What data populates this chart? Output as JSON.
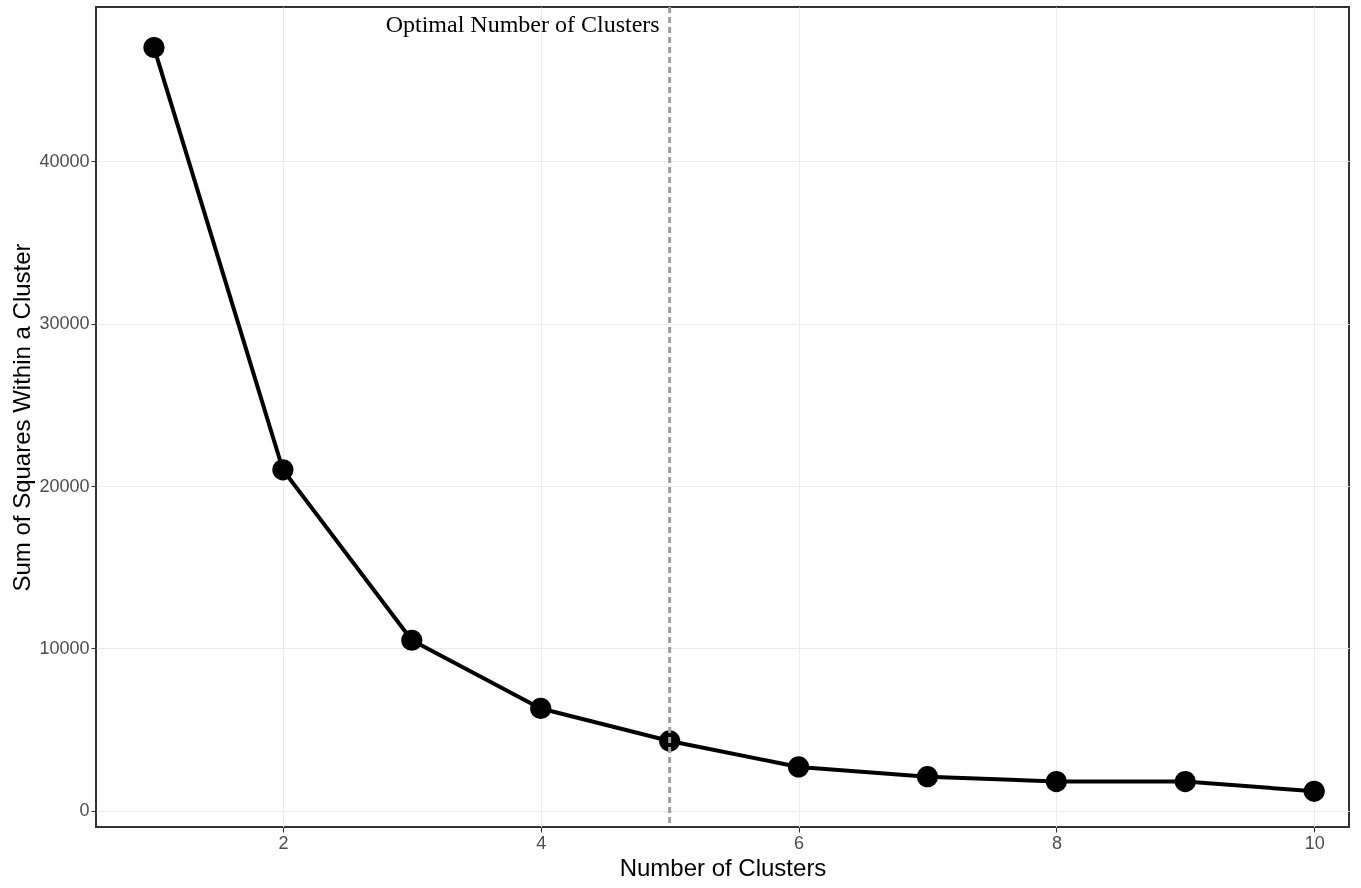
{
  "chart_data": {
    "type": "line",
    "xlabel": "Number of Clusters",
    "ylabel": "Sum of Squares Within a Cluster",
    "x": [
      1,
      2,
      3,
      4,
      5,
      6,
      7,
      8,
      9,
      10
    ],
    "series": [
      {
        "color": "#000000",
        "values": [
          47000,
          21000,
          10500,
          6300,
          4300,
          2700,
          2100,
          1800,
          1800,
          1200
        ]
      }
    ],
    "xlim": [
      0.55,
      10.27
    ],
    "xticks": [
      2,
      4,
      6,
      8,
      10
    ],
    "ylim": [
      -1000,
      49500
    ],
    "yticks": [
      0,
      10000,
      20000,
      30000,
      40000
    ],
    "ref_lines": [
      {
        "axis": "x",
        "value": 5,
        "label": "Optimal Number of Clusters",
        "color": "#a0a0a0",
        "line_style": "dashed"
      }
    ],
    "grid": true,
    "marker": "circle",
    "line_style": "solid"
  }
}
